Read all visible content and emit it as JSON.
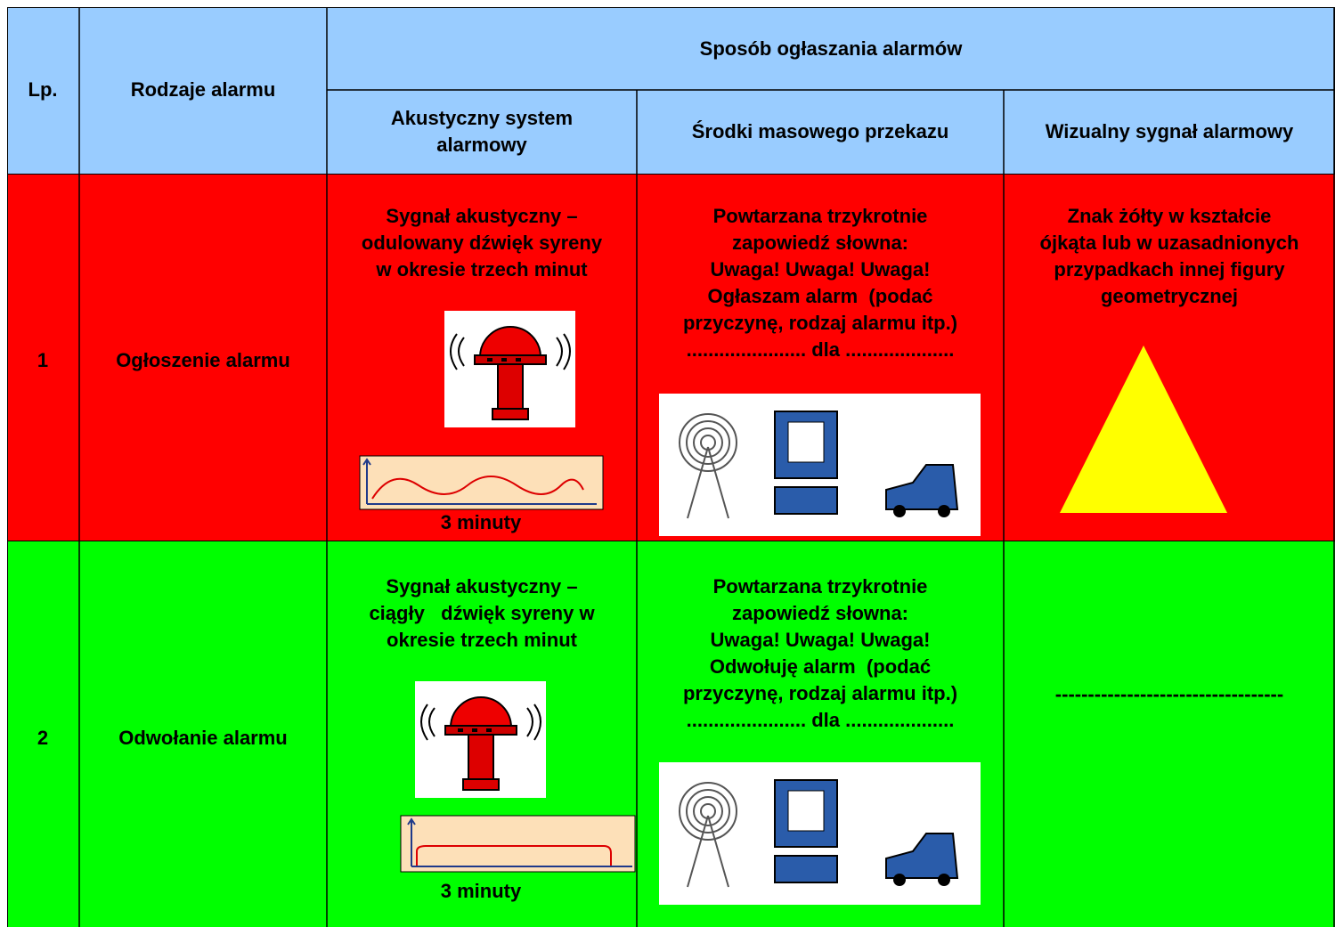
{
  "header": {
    "lp": "Lp.",
    "type": "Rodzaje alarmu",
    "method": "Sposób ogłaszania alarmów",
    "columns": [
      [
        "Akustyczny system",
        "alarmowy"
      ],
      [
        "Środki masowego przekazu"
      ],
      [
        "Wizualny sygnał alarmowy"
      ]
    ]
  },
  "rows": [
    {
      "lp": "1",
      "name": "Ogłoszenie alarmu",
      "acoustic": [
        "Sygnał akustyczny –",
        "odulowany dźwięk syreny",
        "w okresie trzech minut"
      ],
      "caption": "3 minuty",
      "media": [
        "Powtarzana trzykrotnie",
        "zapowiedź słowna:",
        "Uwaga! Uwaga! Uwaga!",
        "Ogłaszam alarm  (podać",
        "przyczynę, rodzaj alarmu itp.)",
        "...................... dla ...................."
      ],
      "visual": [
        "Znak żółty w kształcie",
        "ójkąta lub w uzasadnionych",
        "przypadkach innej figury",
        "geometrycznej"
      ]
    },
    {
      "lp": "2",
      "name": "Odwołanie alarmu",
      "acoustic": [
        "Sygnał akustyczny –",
        "ciągły   dźwięk syreny w",
        "okresie trzech minut"
      ],
      "caption": "3 minuty",
      "media": [
        "Powtarzana trzykrotnie",
        "zapowiedź słowna:",
        "Uwaga! Uwaga! Uwaga!",
        "Odwołuję alarm  (podać",
        "przyczynę, rodzaj alarmu itp.)",
        "...................... dla ...................."
      ],
      "visual": [
        "-----------------------------------"
      ]
    }
  ]
}
